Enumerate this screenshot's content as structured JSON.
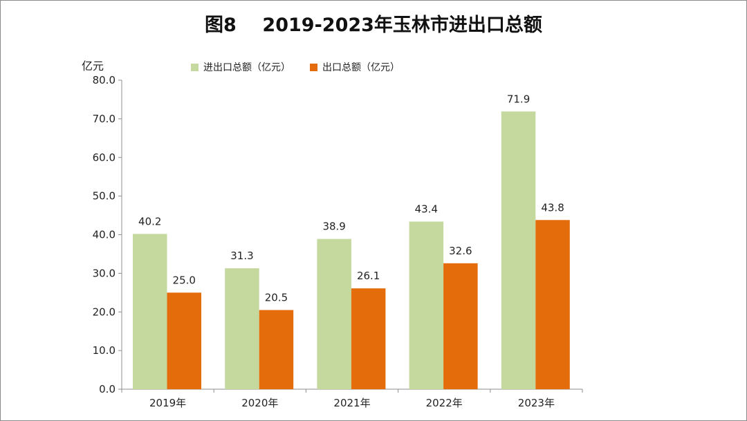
{
  "page": {
    "title": "图8    2019-2023年玉林市进出口总额",
    "unit_label": "亿元"
  },
  "legend": [
    {
      "label": "进出口总额（亿元）",
      "color": "#c5d89d"
    },
    {
      "label": "出口总额（亿元）",
      "color": "#e46c0a"
    }
  ],
  "chart_data": {
    "type": "bar",
    "title": "图8    2019-2023年玉林市进出口总额",
    "xlabel": "",
    "ylabel": "亿元",
    "categories": [
      "2019年",
      "2020年",
      "2021年",
      "2022年",
      "2023年"
    ],
    "series": [
      {
        "name": "进出口总额（亿元）",
        "values": [
          40.2,
          31.3,
          38.9,
          43.4,
          71.9
        ],
        "color": "#c5d89d"
      },
      {
        "name": "出口总额（亿元）",
        "values": [
          25.0,
          20.5,
          26.1,
          32.6,
          43.8
        ],
        "color": "#e46c0a"
      }
    ],
    "ylim": [
      0,
      80
    ],
    "yticks": [
      "0.0",
      "10.0",
      "20.0",
      "30.0",
      "40.0",
      "50.0",
      "60.0",
      "70.0",
      "80.0"
    ],
    "grid": false,
    "legend_position": "top"
  }
}
